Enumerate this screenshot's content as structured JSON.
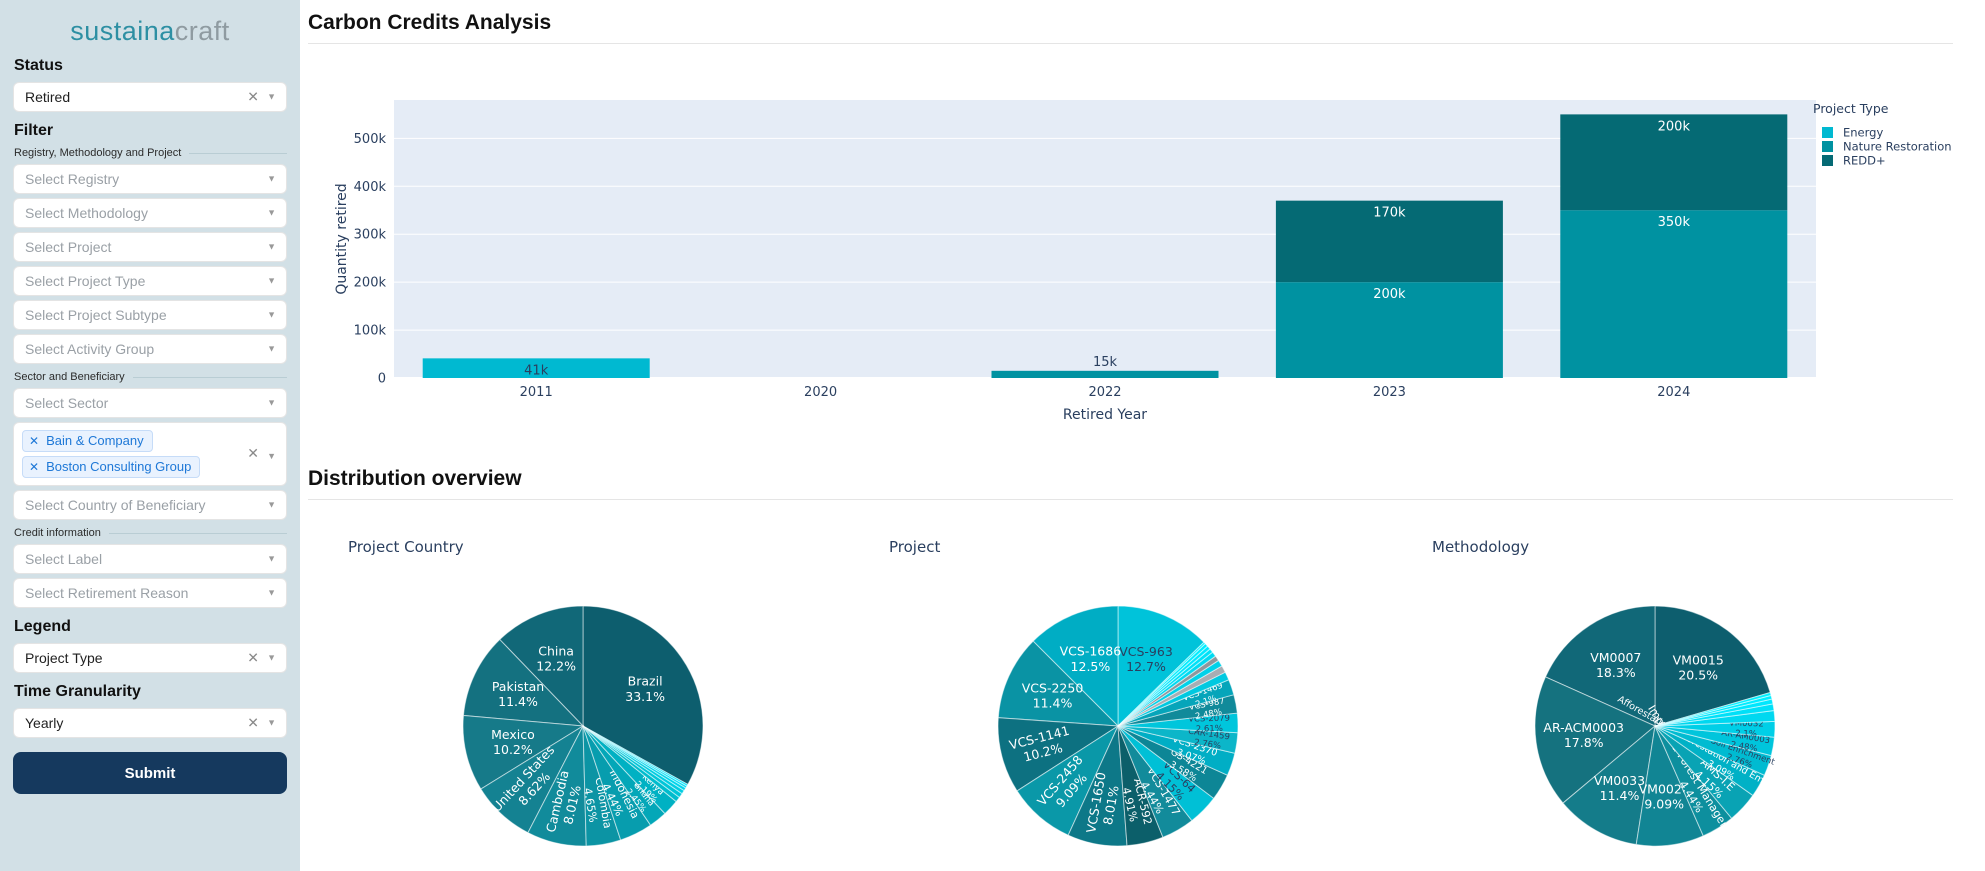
{
  "brand": {
    "teal": "sustaina",
    "gray": "craft"
  },
  "sidebar": {
    "status": {
      "heading": "Status",
      "value": "Retired"
    },
    "filter": {
      "heading": "Filter",
      "group1_label": "Registry, Methodology and Project",
      "registry_ph": "Select Registry",
      "methodology_ph": "Select Methodology",
      "project_ph": "Select Project",
      "project_type_ph": "Select Project Type",
      "project_subtype_ph": "Select Project Subtype",
      "activity_group_ph": "Select Activity Group",
      "group2_label": "Sector and Beneficiary",
      "sector_ph": "Select Sector",
      "beneficiary_chips": [
        "Bain & Company",
        "Boston Consulting Group"
      ],
      "country_ph": "Select Country of Beneficiary",
      "group3_label": "Credit information",
      "label_ph": "Select Label",
      "retirement_reason_ph": "Select Retirement Reason"
    },
    "legend": {
      "heading": "Legend",
      "value": "Project Type"
    },
    "time_granularity": {
      "heading": "Time Granularity",
      "value": "Yearly"
    },
    "submit_label": "Submit"
  },
  "main": {
    "title": "Carbon Credits Analysis",
    "section2_title": "Distribution overview"
  },
  "chart_data": [
    {
      "type": "bar",
      "stacked": true,
      "categories": [
        "2011",
        "2020",
        "2022",
        "2023",
        "2024"
      ],
      "series": [
        {
          "name": "Energy",
          "color": "#00b9d1",
          "values": [
            41000,
            0,
            0,
            0,
            0
          ],
          "labels": [
            "41k",
            "",
            "",
            "",
            ""
          ]
        },
        {
          "name": "Nature Restoration",
          "color": "#0092a1",
          "values": [
            0,
            0,
            15000,
            200000,
            350000
          ],
          "labels": [
            "",
            "",
            "15k",
            "200k",
            "350k"
          ]
        },
        {
          "name": "REDD+",
          "color": "#056a74",
          "values": [
            0,
            0,
            0,
            170000,
            200000
          ],
          "labels": [
            "",
            "",
            "",
            "170k",
            "200k"
          ]
        }
      ],
      "xlabel": "Retired Year",
      "ylabel": "Quantity retired",
      "ylim": [
        0,
        580000
      ],
      "yticks": [
        0,
        100000,
        200000,
        300000,
        400000,
        500000
      ],
      "ytick_labels": [
        "0",
        "100k",
        "200k",
        "300k",
        "400k",
        "500k"
      ],
      "grid": true,
      "plot_bg": "#e5ecf6",
      "legend_title": "Project Type",
      "legend_position": "top-right"
    },
    {
      "type": "pie",
      "title": "Project Country",
      "slices": [
        {
          "label": "Brazil",
          "value": 33.1,
          "pct_label": "33.1%",
          "color": "#0d5e6e",
          "rot": false
        },
        {
          "label": "China",
          "value": 12.2,
          "pct_label": "12.2%",
          "color": "#116878",
          "rot": false
        },
        {
          "label": "Pakistan",
          "value": 11.4,
          "pct_label": "11.4%",
          "color": "#147180",
          "rot": false
        },
        {
          "label": "Mexico",
          "value": 10.2,
          "pct_label": "10.2%",
          "color": "#167a89",
          "rot": false
        },
        {
          "label": "United States",
          "value": 8.62,
          "pct_label": "8.62%",
          "color": "#148292",
          "rot": true
        },
        {
          "label": "Cambodia",
          "value": 8.01,
          "pct_label": "8.01%",
          "color": "#118b9b",
          "rot": true
        },
        {
          "label": "Colombia",
          "value": 4.65,
          "pct_label": "4.65%",
          "color": "#0c94a4",
          "rot": true
        },
        {
          "label": "Indonesia",
          "value": 4.44,
          "pct_label": "4.44%",
          "color": "#079dae",
          "rot": true
        },
        {
          "label": "Ghana",
          "value": 2.45,
          "pct_label": "2.45%",
          "color": "#03a7b8",
          "rot": true
        },
        {
          "label": "Kenya",
          "value": 2.19,
          "pct_label": "2.19%",
          "color": "#00b1c3",
          "rot": true
        },
        {
          "label": "",
          "value": 0.7,
          "pct_label": "",
          "color": "#00bccd",
          "rot": true
        },
        {
          "label": "",
          "value": 0.6,
          "pct_label": "",
          "color": "#00c5d8",
          "rot": true
        },
        {
          "label": "",
          "value": 0.5,
          "pct_label": "",
          "color": "#00cde2",
          "rot": true
        },
        {
          "label": "",
          "value": 0.4,
          "pct_label": "",
          "color": "#00d5ec",
          "rot": true
        },
        {
          "label": "",
          "value": 0.3,
          "pct_label": "",
          "color": "#00ddf5",
          "rot": true
        },
        {
          "label": "",
          "value": 0.24,
          "pct_label": "",
          "color": "#00e4fc",
          "rot": true
        }
      ]
    },
    {
      "type": "pie",
      "title": "Project",
      "slices": [
        {
          "label": "VCS-963",
          "value": 12.7,
          "pct_label": "12.7%",
          "color": "#00c3da",
          "rot": false
        },
        {
          "label": "VCS-1686",
          "value": 12.5,
          "pct_label": "12.5%",
          "color": "#00adc4",
          "rot": false
        },
        {
          "label": "VCS-2250",
          "value": 11.4,
          "pct_label": "11.4%",
          "color": "#0a93a4",
          "rot": false
        },
        {
          "label": "VCS-1141",
          "value": 10.2,
          "pct_label": "10.2%",
          "color": "#0d7181",
          "rot": true
        },
        {
          "label": "VCS-2458",
          "value": 9.09,
          "pct_label": "9.09%",
          "color": "#0a98a8",
          "rot": true
        },
        {
          "label": "VCS-1650",
          "value": 8.01,
          "pct_label": "8.01%",
          "color": "#0d7888",
          "rot": true
        },
        {
          "label": "ACR-592",
          "value": 4.91,
          "pct_label": "4.91%",
          "color": "#0c5f6a",
          "rot": true
        },
        {
          "label": "VCS-1477",
          "value": 4.44,
          "pct_label": "4.44%",
          "color": "#128b9b",
          "rot": true
        },
        {
          "label": "VCS-64",
          "value": 4.15,
          "pct_label": "4.15%",
          "color": "#00c0d6",
          "rot": true
        },
        {
          "label": "GS-4221",
          "value": 3.58,
          "pct_label": "3.58%",
          "color": "#0d8696",
          "rot": true
        },
        {
          "label": "VCS-2370",
          "value": 3.07,
          "pct_label": "3.07%",
          "color": "#00aec5",
          "rot": true
        },
        {
          "label": "CAR-1459",
          "value": 2.76,
          "pct_label": "2.76%",
          "color": "#0cb6c9",
          "rot": true
        },
        {
          "label": "VCS-2079",
          "value": 2.61,
          "pct_label": "2.61%",
          "color": "#00c6dc",
          "rot": true
        },
        {
          "label": "VCS-987",
          "value": 2.48,
          "pct_label": "2.48%",
          "color": "#118a9a",
          "rot": true
        },
        {
          "label": "VCS-1469",
          "value": 2.1,
          "pct_label": "2.1%",
          "color": "#06a5ba",
          "rot": true
        },
        {
          "label": "",
          "value": 1.1,
          "pct_label": "",
          "color": "#00c9e0",
          "rot": true
        },
        {
          "label": "",
          "value": 0.95,
          "pct_label": "",
          "color": "#a7adb3",
          "rot": true
        },
        {
          "label": "",
          "value": 0.85,
          "pct_label": "",
          "color": "#00d2e9",
          "rot": true
        },
        {
          "label": "",
          "value": 0.7,
          "pct_label": "",
          "color": "#8f969c",
          "rot": true
        },
        {
          "label": "",
          "value": 0.65,
          "pct_label": "",
          "color": "#00daf1",
          "rot": true
        },
        {
          "label": "",
          "value": 0.55,
          "pct_label": "",
          "color": "#00e1f8",
          "rot": true
        },
        {
          "label": "",
          "value": 0.5,
          "pct_label": "",
          "color": "#00e8fe",
          "rot": true
        },
        {
          "label": "",
          "value": 0.45,
          "pct_label": "",
          "color": "#00edff",
          "rot": true
        },
        {
          "label": "",
          "value": 0.25,
          "pct_label": "",
          "color": "#00f1ff",
          "rot": true
        }
      ]
    },
    {
      "type": "pie",
      "title": "Methodology",
      "slices": [
        {
          "label": "VM0015",
          "value": 20.5,
          "pct_label": "20.5%",
          "color": "#0d5e6e",
          "rot": false
        },
        {
          "label": "VM0007",
          "value": 18.3,
          "pct_label": "18.3%",
          "color": "#116878",
          "rot": false
        },
        {
          "label": "AR-ACM0003",
          "value": 17.8,
          "pct_label": "17.8%",
          "color": "#15727f",
          "rot": false
        },
        {
          "label": "VM0033",
          "value": 11.4,
          "pct_label": "11.4%",
          "color": "#147c8a",
          "rot": false
        },
        {
          "label": "VM0026",
          "value": 9.09,
          "pct_label": "9.09%",
          "color": "#118594",
          "rot": false
        },
        {
          "label": "Improved Forest Management (IFM)",
          "value": 4.44,
          "pct_label": "4.44%",
          "color": "#0d8f9e",
          "rot": true
        },
        {
          "label": "AMS-I.E",
          "value": 4.15,
          "pct_label": "4.15%",
          "color": "#09a3b4",
          "rot": true
        },
        {
          "label": "Afforestation/Reforestation and Emission Reductions",
          "value": 3.09,
          "pct_label": "3.09%",
          "color": "#00b1c6",
          "rot": true
        },
        {
          "label": "Soil Enrichment",
          "value": 2.76,
          "pct_label": "2.76%",
          "color": "#00bbd1",
          "rot": true
        },
        {
          "label": "AR-AM0003",
          "value": 2.48,
          "pct_label": "2.48%",
          "color": "#00c5dc",
          "rot": true
        },
        {
          "label": "VM0032",
          "value": 2.1,
          "pct_label": "2.1%",
          "color": "#00cfe7",
          "rot": true
        },
        {
          "label": "",
          "value": 1.45,
          "pct_label": "",
          "color": "#00d8f0",
          "rot": true
        },
        {
          "label": "",
          "value": 0.9,
          "pct_label": "",
          "color": "#00e0f8",
          "rot": true
        },
        {
          "label": "",
          "value": 0.65,
          "pct_label": "",
          "color": "#00e7fe",
          "rot": true
        },
        {
          "label": "",
          "value": 0.5,
          "pct_label": "",
          "color": "#00ecff",
          "rot": true
        },
        {
          "label": "",
          "value": 0.39,
          "pct_label": "",
          "color": "#00f0ff",
          "rot": true
        }
      ]
    }
  ]
}
